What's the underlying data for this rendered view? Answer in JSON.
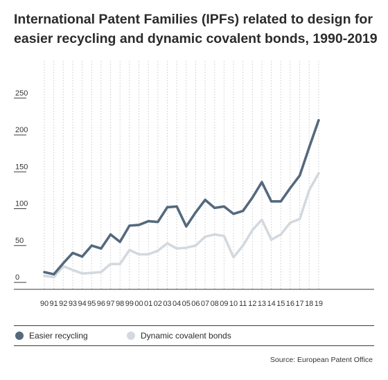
{
  "title": "International Patent Families (IPFs) related to design for easier recycling and dynamic covalent bonds, 1990-2019",
  "source": "Source: European Patent Office",
  "colors": {
    "easier": "#54697d",
    "dynamic": "#d3d9de"
  },
  "chart_data": {
    "type": "line",
    "title": "International Patent Families (IPFs) related to design for easier recycling and dynamic covalent bonds, 1990-2019",
    "xlabel": "",
    "ylabel": "",
    "categories": [
      "90",
      "91",
      "92",
      "93",
      "94",
      "95",
      "96",
      "97",
      "98",
      "99",
      "00",
      "01",
      "02",
      "03",
      "04",
      "05",
      "06",
      "07",
      "08",
      "09",
      "10",
      "11",
      "12",
      "13",
      "14",
      "15",
      "16",
      "17",
      "18",
      "19"
    ],
    "yticks": [
      0,
      50,
      100,
      150,
      200,
      250
    ],
    "ylim": [
      0,
      260
    ],
    "grid": "vertical",
    "legend_position": "bottom",
    "series": [
      {
        "name": "Easier recycling",
        "values": [
          14,
          11,
          26,
          40,
          35,
          50,
          46,
          65,
          55,
          77,
          78,
          83,
          82,
          102,
          103,
          76,
          95,
          112,
          101,
          103,
          93,
          97,
          115,
          136,
          110,
          110,
          128,
          145,
          183,
          220
        ]
      },
      {
        "name": "Dynamic covalent bonds",
        "values": [
          9,
          7,
          22,
          17,
          12,
          13,
          14,
          25,
          25,
          44,
          38,
          38,
          43,
          53,
          46,
          47,
          50,
          62,
          65,
          63,
          34,
          50,
          71,
          85,
          58,
          65,
          81,
          86,
          125,
          148
        ]
      }
    ]
  }
}
